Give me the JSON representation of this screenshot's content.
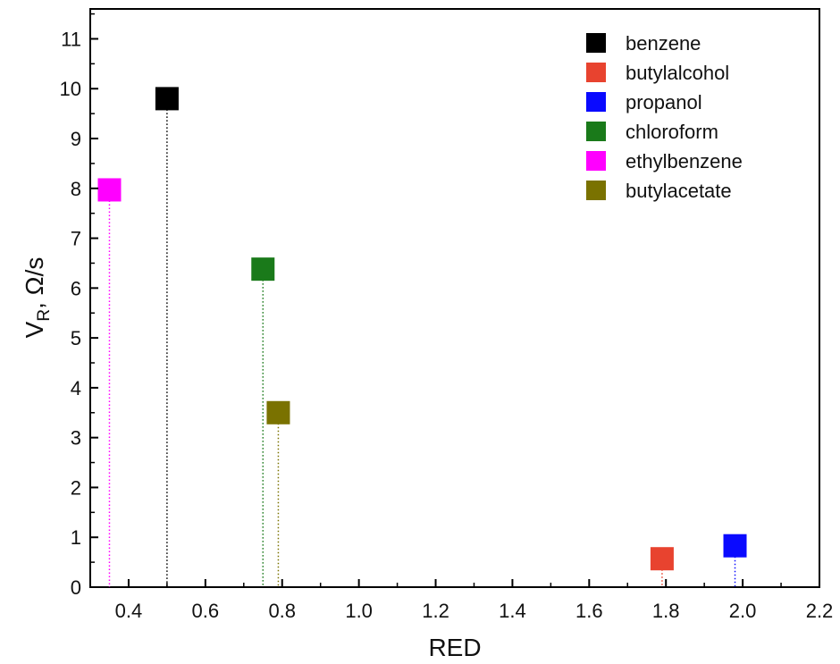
{
  "chart_data": {
    "type": "scatter",
    "xlabel": "RED",
    "ylabel_main": "V",
    "ylabel_sub": "R",
    "ylabel_rest": ", Ω/s",
    "xlim": [
      0.3,
      2.2
    ],
    "ylim": [
      0,
      11.6
    ],
    "xticks": [
      "0.4",
      "0.6",
      "0.8",
      "1.0",
      "1.2",
      "1.4",
      "1.6",
      "1.8",
      "2.0",
      "2.2"
    ],
    "yticks": [
      "0",
      "1",
      "2",
      "3",
      "4",
      "5",
      "6",
      "7",
      "8",
      "9",
      "10",
      "11"
    ],
    "grid": false,
    "legend_position": "top-right",
    "drop_lines": true,
    "series": [
      {
        "name": "benzene",
        "x": 0.5,
        "y": 9.8,
        "color": "#000000"
      },
      {
        "name": "butylalcohol",
        "x": 1.79,
        "y": 0.57,
        "color": "#e8432f"
      },
      {
        "name": "propanol",
        "x": 1.98,
        "y": 0.83,
        "color": "#0a0aff"
      },
      {
        "name": "chloroform",
        "x": 0.75,
        "y": 6.38,
        "color": "#1a7a1a"
      },
      {
        "name": "ethylbenzene",
        "x": 0.35,
        "y": 7.97,
        "color": "#ff00ff"
      },
      {
        "name": "butylacetate",
        "x": 0.79,
        "y": 3.5,
        "color": "#7a7200"
      }
    ]
  }
}
